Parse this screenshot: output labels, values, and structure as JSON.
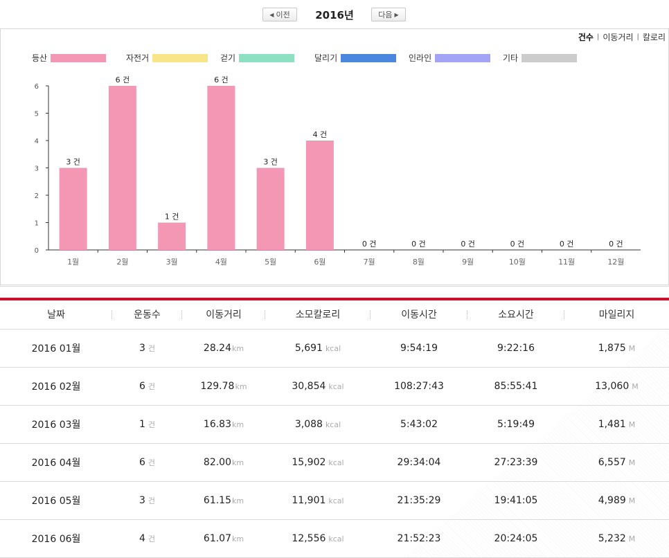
{
  "nav": {
    "prev_label": "이전",
    "next_label": "다음",
    "year": "2016년"
  },
  "metric_switch": {
    "options": [
      "건수",
      "이동거리",
      "칼로리"
    ],
    "active": "건수"
  },
  "legend": [
    {
      "label": "등산",
      "color": "#f497b5"
    },
    {
      "label": "자전거",
      "color": "#f8e58a"
    },
    {
      "label": "걷기",
      "color": "#8ee0c3"
    },
    {
      "label": "달리기",
      "color": "#4a88df"
    },
    {
      "label": "인라인",
      "color": "#a3a4f6"
    },
    {
      "label": "기타",
      "color": "#cccccc"
    }
  ],
  "chart_data": {
    "type": "bar",
    "categories": [
      "1월",
      "2월",
      "3월",
      "4월",
      "5월",
      "6월",
      "7월",
      "8월",
      "9월",
      "10월",
      "11월",
      "12월"
    ],
    "series": [
      {
        "name": "등산",
        "color": "#f497b5",
        "values": [
          3,
          6,
          1,
          6,
          3,
          4,
          0,
          0,
          0,
          0,
          0,
          0
        ]
      }
    ],
    "data_labels": [
      "3 건",
      "6 건",
      "1 건",
      "6 건",
      "3 건",
      "4 건",
      "0 건",
      "0 건",
      "0 건",
      "0 건",
      "0 건",
      "0 건"
    ],
    "yticks": [
      "0",
      "1",
      "2",
      "3",
      "4",
      "5",
      "6"
    ],
    "ylim": [
      0,
      6
    ],
    "grid": false
  },
  "table": {
    "headers": [
      "날짜",
      "운동수",
      "이동거리",
      "소모칼로리",
      "이동시간",
      "소요시간",
      "마일리지"
    ],
    "units": {
      "count": "건",
      "distance": "km",
      "calorie": "kcal",
      "mileage": "M"
    },
    "rows": [
      {
        "date": "2016 01월",
        "count": "3",
        "distance": "28.24",
        "calorie": "5,691",
        "move_time": "9:54:19",
        "total_time": "9:22:16",
        "mileage": "1,875"
      },
      {
        "date": "2016 02월",
        "count": "6",
        "distance": "129.78",
        "calorie": "30,854",
        "move_time": "108:27:43",
        "total_time": "85:55:41",
        "mileage": "13,060"
      },
      {
        "date": "2016 03월",
        "count": "1",
        "distance": "16.83",
        "calorie": "3,088",
        "move_time": "5:43:02",
        "total_time": "5:19:49",
        "mileage": "1,481"
      },
      {
        "date": "2016 04월",
        "count": "6",
        "distance": "82.00",
        "calorie": "15,902",
        "move_time": "29:34:04",
        "total_time": "27:23:39",
        "mileage": "6,557"
      },
      {
        "date": "2016 05월",
        "count": "3",
        "distance": "61.15",
        "calorie": "11,901",
        "move_time": "21:35:29",
        "total_time": "19:41:05",
        "mileage": "4,989"
      },
      {
        "date": "2016 06월",
        "count": "4",
        "distance": "61.07",
        "calorie": "12,556",
        "move_time": "21:52:23",
        "total_time": "20:24:05",
        "mileage": "5,232"
      }
    ]
  }
}
